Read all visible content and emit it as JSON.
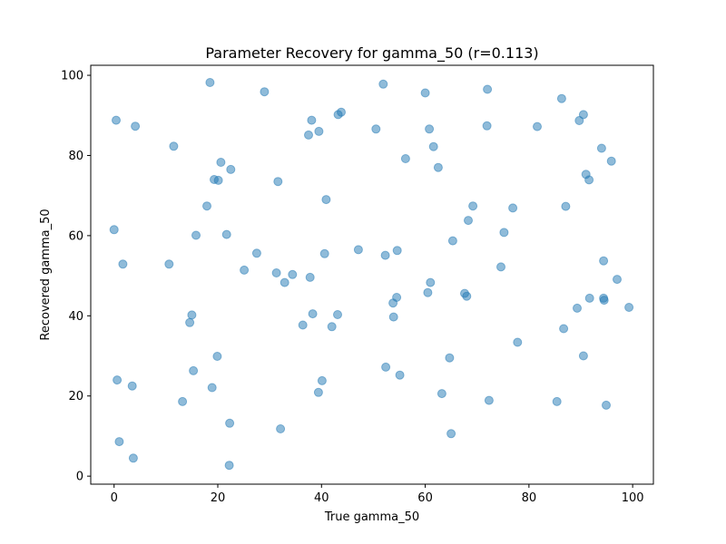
{
  "chart_data": {
    "type": "scatter",
    "title": "Parameter Recovery for gamma_50 (r=0.113)",
    "xlabel": "True gamma_50",
    "ylabel": "Recovered gamma_50",
    "xlim": [
      -4.5,
      104
    ],
    "ylim": [
      -2,
      102.5
    ],
    "xticks": [
      0,
      20,
      40,
      60,
      80,
      100
    ],
    "yticks": [
      0,
      20,
      40,
      60,
      80,
      100
    ],
    "grid": false,
    "marker_color": "#1f77b4",
    "marker_alpha": 0.5,
    "points": [
      [
        0.4,
        88.8
      ],
      [
        4.1,
        87.3
      ],
      [
        11.5,
        82.3
      ],
      [
        18.5,
        98.2
      ],
      [
        29.0,
        95.9
      ],
      [
        38.1,
        88.8
      ],
      [
        43.2,
        90.2
      ],
      [
        43.8,
        90.8
      ],
      [
        39.5,
        86.0
      ],
      [
        37.5,
        85.1
      ],
      [
        51.9,
        97.8
      ],
      [
        50.5,
        86.6
      ],
      [
        60.0,
        95.6
      ],
      [
        60.8,
        86.6
      ],
      [
        61.6,
        82.2
      ],
      [
        56.2,
        79.2
      ],
      [
        62.5,
        77.0
      ],
      [
        72.0,
        96.5
      ],
      [
        71.9,
        87.4
      ],
      [
        81.6,
        87.2
      ],
      [
        86.3,
        94.2
      ],
      [
        90.5,
        90.2
      ],
      [
        89.7,
        88.7
      ],
      [
        94.0,
        81.8
      ],
      [
        95.9,
        78.6
      ],
      [
        91.0,
        75.3
      ],
      [
        91.6,
        73.9
      ],
      [
        87.1,
        67.3
      ],
      [
        20.6,
        78.3
      ],
      [
        22.5,
        76.5
      ],
      [
        19.3,
        74.0
      ],
      [
        20.1,
        73.8
      ],
      [
        31.6,
        73.5
      ],
      [
        40.9,
        69.0
      ],
      [
        17.9,
        67.4
      ],
      [
        69.2,
        67.4
      ],
      [
        76.9,
        66.9
      ],
      [
        68.3,
        63.8
      ],
      [
        0.0,
        61.5
      ],
      [
        15.8,
        60.1
      ],
      [
        21.7,
        60.3
      ],
      [
        75.2,
        60.8
      ],
      [
        65.3,
        58.7
      ],
      [
        1.7,
        52.9
      ],
      [
        10.6,
        52.9
      ],
      [
        27.5,
        55.6
      ],
      [
        40.6,
        55.5
      ],
      [
        47.1,
        56.5
      ],
      [
        52.3,
        55.1
      ],
      [
        54.6,
        56.3
      ],
      [
        74.6,
        52.2
      ],
      [
        94.4,
        53.7
      ],
      [
        25.1,
        51.4
      ],
      [
        31.3,
        50.7
      ],
      [
        34.4,
        50.3
      ],
      [
        37.8,
        49.6
      ],
      [
        32.9,
        48.3
      ],
      [
        61.0,
        48.3
      ],
      [
        97.0,
        49.1
      ],
      [
        60.5,
        45.8
      ],
      [
        67.6,
        45.6
      ],
      [
        68.0,
        44.9
      ],
      [
        54.5,
        44.6
      ],
      [
        53.8,
        43.2
      ],
      [
        91.7,
        44.4
      ],
      [
        94.4,
        44.4
      ],
      [
        94.5,
        43.9
      ],
      [
        89.3,
        41.9
      ],
      [
        99.3,
        42.1
      ],
      [
        15.0,
        40.2
      ],
      [
        38.3,
        40.5
      ],
      [
        43.1,
        40.3
      ],
      [
        53.9,
        39.7
      ],
      [
        14.6,
        38.3
      ],
      [
        36.4,
        37.7
      ],
      [
        42.0,
        37.3
      ],
      [
        86.7,
        36.8
      ],
      [
        77.8,
        33.4
      ],
      [
        19.9,
        29.9
      ],
      [
        64.7,
        29.5
      ],
      [
        90.5,
        30.0
      ],
      [
        15.3,
        26.3
      ],
      [
        52.4,
        27.2
      ],
      [
        55.1,
        25.2
      ],
      [
        0.6,
        24.0
      ],
      [
        40.1,
        23.8
      ],
      [
        3.5,
        22.5
      ],
      [
        18.9,
        22.1
      ],
      [
        39.4,
        20.9
      ],
      [
        63.2,
        20.6
      ],
      [
        13.2,
        18.6
      ],
      [
        72.3,
        18.9
      ],
      [
        85.4,
        18.6
      ],
      [
        94.9,
        17.7
      ],
      [
        22.3,
        13.2
      ],
      [
        32.1,
        11.8
      ],
      [
        1.0,
        8.6
      ],
      [
        65.0,
        10.6
      ],
      [
        3.7,
        4.5
      ],
      [
        22.2,
        2.7
      ]
    ]
  }
}
